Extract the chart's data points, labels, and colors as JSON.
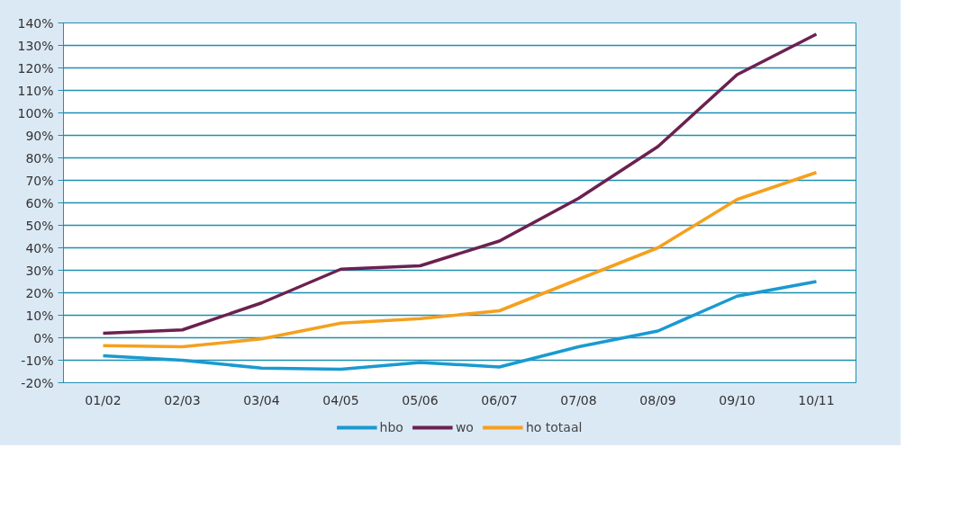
{
  "chart_data": {
    "type": "line",
    "categories": [
      "01/02",
      "02/03",
      "03/04",
      "04/05",
      "05/06",
      "06/07",
      "07/08",
      "08/09",
      "09/10",
      "10/11"
    ],
    "series": [
      {
        "name": "hbo",
        "color": "#1a9ad0",
        "values": [
          -8,
          -10,
          -13.5,
          -14,
          -11,
          -13,
          -4,
          3,
          18.5,
          25
        ]
      },
      {
        "name": "wo",
        "color": "#6b2150",
        "values": [
          2,
          3.5,
          15.5,
          30.5,
          32,
          43,
          62,
          85,
          117,
          135
        ]
      },
      {
        "name": "ho totaal",
        "color": "#f5a01e",
        "values": [
          -3.5,
          -4,
          -0.5,
          6.5,
          8.5,
          12,
          26,
          40,
          61.5,
          73.5
        ]
      }
    ],
    "ylim": [
      -20,
      140
    ],
    "yticks": [
      {
        "value": -20,
        "label": "-20%"
      },
      {
        "value": -10,
        "label": "-10%"
      },
      {
        "value": 0,
        "label": "0%"
      },
      {
        "value": 10,
        "label": "10%"
      },
      {
        "value": 20,
        "label": "20%"
      },
      {
        "value": 30,
        "label": "30%"
      },
      {
        "value": 40,
        "label": "40%"
      },
      {
        "value": 50,
        "label": "50%"
      },
      {
        "value": 60,
        "label": "60%"
      },
      {
        "value": 70,
        "label": "70%"
      },
      {
        "value": 80,
        "label": "80%"
      },
      {
        "value": 90,
        "label": "90%"
      },
      {
        "value": 100,
        "label": "100%"
      },
      {
        "value": 110,
        "label": "110%"
      },
      {
        "value": 120,
        "label": "120%"
      },
      {
        "value": 130,
        "label": "130%"
      },
      {
        "value": 140,
        "label": "140%"
      }
    ],
    "grid": "y",
    "legend": "bottom",
    "marker": "none",
    "line_style": "solid"
  }
}
